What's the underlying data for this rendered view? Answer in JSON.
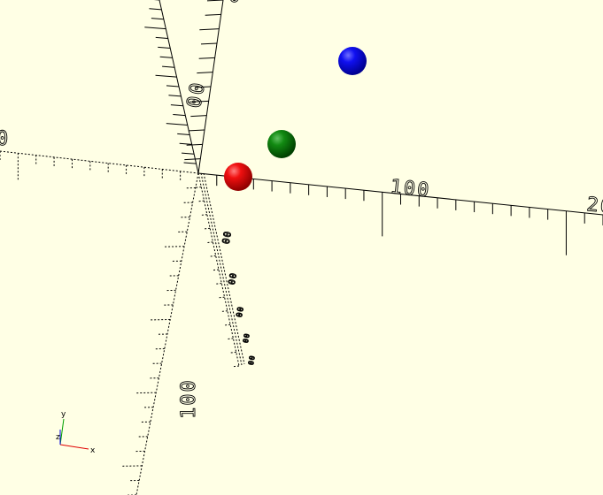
{
  "viewport": {
    "background": "#FFFFE5",
    "axis_labels": {
      "x_pos_100": "100",
      "x_pos_200": "20",
      "x_neg": "0",
      "y_upper": "00",
      "y_lower": "100",
      "z_top": "0",
      "y_near_1": "00",
      "y_near_2": "00",
      "y_near_3": "00",
      "y_near_4": "00",
      "y_near_5": "00"
    }
  },
  "objects": [
    {
      "name": "red-sphere",
      "color": "#E00000"
    },
    {
      "name": "green-sphere",
      "color": "#008000"
    },
    {
      "name": "blue-sphere",
      "color": "#0000E0"
    }
  ],
  "gizmo": {
    "x_label": "x",
    "y_label": "y",
    "z_label": "z",
    "x_color": "#E00000",
    "y_color": "#00A000",
    "z_color": "#0000E0"
  }
}
